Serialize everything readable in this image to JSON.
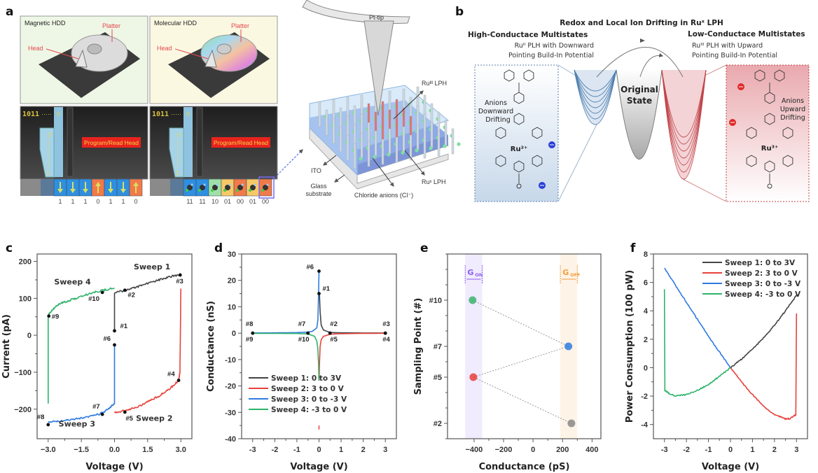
{
  "panel_letters": {
    "a": "a",
    "b": "b",
    "c": "c",
    "d": "d",
    "e": "e",
    "f": "f"
  },
  "panel_a": {
    "magnetic_title": "Magnetic HDD",
    "molecular_title": "Molecular HDD",
    "platter_label": "Platter",
    "head_label": "Head",
    "bit_stream": "1011",
    "dots": "·····",
    "zero": "0",
    "one": "1",
    "program_read_head": "Program/Read Head",
    "magnetic_bits": [
      "1",
      "1",
      "1",
      "0",
      "1",
      "1",
      "0"
    ],
    "molecular_bits": [
      "11",
      "11",
      "10",
      "01",
      "00",
      "01",
      "00"
    ],
    "magnetic_cell_colors": [
      "#2f8fe0",
      "#2f8fe0",
      "#2f8fe0",
      "#f07a4a",
      "#2f8fe0",
      "#2f8fe0",
      "#f07a4a"
    ],
    "molecular_cell_colors": [
      "#2f8fe0",
      "#2f8fe0",
      "#9ee0a8",
      "#f6c866",
      "#f07a4a",
      "#f6c866",
      "#f07a4a"
    ],
    "device": {
      "pt_tip": "Pt-tip",
      "ru3_lph": "Ruᴵᴵᴵ LPH",
      "ito": "ITO",
      "glass_line1": "Glass",
      "glass_line2": "substrate",
      "rux_lph": "Ruˣ LPH",
      "chloride": "Chloride anions (Cl⁻)"
    }
  },
  "panel_b": {
    "title": "Redox and Local Ion Drifting in Ruˣ LPH",
    "high_title": "High-Conductace Multistates",
    "high_sub1": "Ruᴵᴵ PLH with Downward",
    "high_sub2": "Pointing Build-In Potential",
    "low_title": "Low-Conductace Multistates",
    "low_sub1": "Ruᴵᴵᴵ PLH with Upward",
    "low_sub2": "Pointing Build-In Potential",
    "original1": "Original",
    "original2": "State",
    "down_anions": [
      "Anions",
      "Downward",
      "Drifting"
    ],
    "up_anions": [
      "Anions",
      "Upward",
      "Drifting"
    ],
    "ru2": "Ru²⁺",
    "ru3": "Ru³⁺",
    "high_color": "#4f7fb0",
    "low_color": "#c0454a"
  },
  "chart_data": [
    {
      "panel_label": "c",
      "type": "line",
      "xlabel": "Voltage (V)",
      "ylabel": "Current (pA)",
      "xlim": [
        -3.5,
        3.5
      ],
      "ylim": [
        -280,
        220
      ],
      "xticks": [
        -3,
        -1.5,
        0,
        1.5,
        3
      ],
      "xtick_labels": [
        "−3.0",
        "−1.5",
        "0.0",
        "1.5",
        "3.0"
      ],
      "yticks": [
        -200,
        -100,
        0,
        100,
        200
      ],
      "ytick_labels": [
        "−200",
        "−100",
        "0",
        "100",
        "200"
      ],
      "series": [
        {
          "name": "Sweep 1",
          "color": "#444444",
          "points": [
            [
              0,
              10
            ],
            [
              0,
              115
            ],
            [
              0.5,
              122
            ],
            [
              1,
              130
            ],
            [
              1.5,
              140
            ],
            [
              2,
              150
            ],
            [
              2.5,
              158
            ],
            [
              3,
              165
            ]
          ]
        },
        {
          "name": "Sweep 2",
          "color": "#e8413c",
          "points": [
            [
              3,
              125
            ],
            [
              2.96,
              -100
            ],
            [
              2.9,
              -122
            ],
            [
              2.5,
              -145
            ],
            [
              2,
              -165
            ],
            [
              1.5,
              -180
            ],
            [
              1,
              -195
            ],
            [
              0.5,
              -203
            ],
            [
              0,
              -210
            ]
          ]
        },
        {
          "name": "Sweep 3",
          "color": "#2f7be0",
          "points": [
            [
              0,
              -25
            ],
            [
              0,
              -185
            ],
            [
              -0.3,
              -200
            ],
            [
              -0.6,
              -212
            ],
            [
              -1,
              -218
            ],
            [
              -1.5,
              -224
            ],
            [
              -2,
              -228
            ],
            [
              -2.5,
              -232
            ],
            [
              -3,
              -235
            ]
          ]
        },
        {
          "name": "Sweep 4",
          "color": "#2fb36a",
          "points": [
            [
              -3,
              -185
            ],
            [
              -3,
              55
            ],
            [
              -2.8,
              70
            ],
            [
              -2.5,
              85
            ],
            [
              -2,
              95
            ],
            [
              -1.5,
              105
            ],
            [
              -1,
              115
            ],
            [
              -0.5,
              122
            ],
            [
              0,
              128
            ]
          ]
        }
      ],
      "markers": [
        {
          "label": "#1",
          "x": 0,
          "y": 12
        },
        {
          "label": "#2",
          "x": 0.47,
          "y": 122
        },
        {
          "label": "#3",
          "x": 2.97,
          "y": 163
        },
        {
          "label": "#4",
          "x": 2.9,
          "y": -122
        },
        {
          "label": "#5",
          "x": 0.47,
          "y": -208
        },
        {
          "label": "#6",
          "x": 0,
          "y": -26
        },
        {
          "label": "#7",
          "x": -0.55,
          "y": -214
        },
        {
          "label": "#8",
          "x": -3,
          "y": -242
        },
        {
          "label": "#9",
          "x": -2.97,
          "y": 52
        },
        {
          "label": "#10",
          "x": -0.55,
          "y": 116
        }
      ],
      "annotations": [
        "Sweep 1",
        "Sweep 2",
        "Sweep 3",
        "Sweep 4"
      ]
    },
    {
      "panel_label": "d",
      "type": "line",
      "xlabel": "Voltage (V)",
      "ylabel": "Conductance (nS)",
      "xlim": [
        -3.5,
        3.5
      ],
      "ylim": [
        -40,
        30
      ],
      "xticks": [
        -3,
        -2,
        -1,
        0,
        1,
        2,
        3
      ],
      "xtick_labels": [
        "-3",
        "-2",
        "-1",
        "0",
        "1",
        "2",
        "3"
      ],
      "yticks": [
        -40,
        -30,
        -20,
        -10,
        0,
        10,
        20,
        30
      ],
      "ytick_labels": [
        "-40",
        "-30",
        "-20",
        "-10",
        "0",
        "10",
        "20",
        "30"
      ],
      "legend_position": "bottom-left",
      "series": [
        {
          "name": "Sweep 1: 0 to 3V",
          "color": "#444444",
          "points": [
            [
              0.02,
              15
            ],
            [
              0.05,
              8
            ],
            [
              0.1,
              3
            ],
            [
              0.2,
              1.2
            ],
            [
              0.5,
              0.25
            ],
            [
              1,
              0.13
            ],
            [
              2,
              0.07
            ],
            [
              3,
              0.05
            ]
          ]
        },
        {
          "name": "Sweep 2: 3 to 0 V",
          "color": "#e8413c",
          "points": [
            [
              3,
              -0.04
            ],
            [
              2,
              -0.08
            ],
            [
              1,
              -0.2
            ],
            [
              0.5,
              -0.4
            ],
            [
              0.2,
              -1.2
            ],
            [
              0.1,
              -2.5
            ],
            [
              0.05,
              -5
            ],
            [
              0.02,
              -12
            ],
            [
              0.005,
              -18
            ]
          ]
        },
        {
          "name": "Sweep 3: 0 to -3 V",
          "color": "#2f7be0",
          "points": [
            [
              0,
              23.5
            ],
            [
              -0.02,
              15
            ],
            [
              -0.05,
              5
            ],
            [
              -0.1,
              2
            ],
            [
              -0.3,
              0.7
            ],
            [
              -0.5,
              0.4
            ],
            [
              -1,
              0.22
            ],
            [
              -2,
              0.11
            ],
            [
              -3,
              0.08
            ]
          ]
        },
        {
          "name": "Sweep 4: -3 to 0 V",
          "color": "#2fb36a",
          "points": [
            [
              -3,
              -0.06
            ],
            [
              -2,
              -0.1
            ],
            [
              -1,
              -0.12
            ],
            [
              -0.5,
              -0.3
            ],
            [
              -0.2,
              -1.2
            ],
            [
              -0.1,
              -3
            ],
            [
              -0.05,
              -6
            ],
            [
              -0.02,
              -12
            ],
            [
              -0.005,
              -18
            ]
          ]
        }
      ],
      "outlier": {
        "x": 0,
        "y": [
          -35,
          -36.5
        ],
        "color": "#e8413c"
      },
      "markers": [
        {
          "label": "#6",
          "x": 0,
          "y": 23.5
        },
        {
          "label": "#1",
          "x": 0,
          "y": 15
        },
        {
          "label": "#8",
          "x": -3,
          "y": 0
        },
        {
          "label": "#9",
          "x": -3,
          "y": 0
        },
        {
          "label": "#7",
          "x": -0.5,
          "y": 0
        },
        {
          "label": "#10",
          "x": -0.5,
          "y": 0
        },
        {
          "label": "#2",
          "x": 0.5,
          "y": 0
        },
        {
          "label": "#5",
          "x": 0.5,
          "y": 0
        },
        {
          "label": "#3",
          "x": 3,
          "y": 0
        },
        {
          "label": "#4",
          "x": 3,
          "y": 0
        }
      ]
    },
    {
      "panel_label": "e",
      "type": "scatter",
      "xlabel": "Conductance (pS)",
      "ylabel": "Sampling Point (#)",
      "xlim": [
        -580,
        460
      ],
      "ylim": [
        1,
        13
      ],
      "xticks": [
        -400,
        -200,
        0,
        200,
        400
      ],
      "xtick_labels": [
        "−400",
        "−200",
        "0",
        "200",
        "400"
      ],
      "yticks": [
        2,
        5,
        7,
        10
      ],
      "ytick_labels": [
        "#2",
        "#5",
        "#7",
        "#10"
      ],
      "bands": [
        {
          "label": "G",
          "sub": "ON",
          "range": [
            -460,
            -345
          ],
          "color": "#8b5cf6"
        },
        {
          "label": "G",
          "sub": "OFF",
          "range": [
            185,
            300
          ],
          "color": "#f39c3a"
        }
      ],
      "points": [
        {
          "label": "#10",
          "x": -410,
          "y": 10,
          "color": "#3cb371"
        },
        {
          "label": "#7",
          "x": 240,
          "y": 7,
          "color": "#2f7be0"
        },
        {
          "label": "#5",
          "x": -405,
          "y": 5,
          "color": "#e8413c"
        },
        {
          "label": "#2",
          "x": 260,
          "y": 2,
          "color": "#888888"
        }
      ]
    },
    {
      "panel_label": "f",
      "type": "line",
      "xlabel": "Voltage (V)",
      "ylabel": "Power Consumption (100 pW)",
      "xlim": [
        -3.5,
        3.5
      ],
      "ylim": [
        -5,
        8
      ],
      "xticks": [
        -3,
        -2,
        -1,
        0,
        1,
        2,
        3
      ],
      "xtick_labels": [
        "-3",
        "-2",
        "-1",
        "0",
        "1",
        "2",
        "3"
      ],
      "yticks": [
        -4,
        -2,
        0,
        2,
        4,
        6,
        8
      ],
      "ytick_labels": [
        "-4",
        "-2",
        "0",
        "2",
        "4",
        "6",
        "8"
      ],
      "legend_position": "top-right",
      "series": [
        {
          "name": "Sweep 1: 0 to 3V",
          "color": "#444444",
          "points": [
            [
              0,
              0
            ],
            [
              0.5,
              0.6
            ],
            [
              1,
              1.3
            ],
            [
              1.5,
              2.1
            ],
            [
              2,
              3
            ],
            [
              2.5,
              4
            ],
            [
              3,
              5.1
            ]
          ]
        },
        {
          "name": "Sweep 2: 3 to 0 V",
          "color": "#e8413c",
          "points": [
            [
              3,
              3.8
            ],
            [
              2.97,
              -3.3
            ],
            [
              2.7,
              -3.6
            ],
            [
              2.5,
              -3.6
            ],
            [
              2,
              -3.3
            ],
            [
              1.5,
              -2.7
            ],
            [
              1,
              -1.9
            ],
            [
              0.5,
              -1
            ],
            [
              0,
              0
            ]
          ]
        },
        {
          "name": "Sweep 3: 0 to -3 V",
          "color": "#2f7be0",
          "points": [
            [
              0,
              0
            ],
            [
              -0.5,
              1.1
            ],
            [
              -1,
              2.2
            ],
            [
              -1.5,
              3.4
            ],
            [
              -2,
              4.6
            ],
            [
              -2.5,
              5.8
            ],
            [
              -3,
              7
            ]
          ]
        },
        {
          "name": "Sweep 4: -3 to 0 V",
          "color": "#2fb36a",
          "points": [
            [
              -3,
              5.5
            ],
            [
              -2.98,
              -1.6
            ],
            [
              -2.8,
              -1.8
            ],
            [
              -2.5,
              -2
            ],
            [
              -2,
              -1.9
            ],
            [
              -1.5,
              -1.6
            ],
            [
              -1,
              -1.2
            ],
            [
              -0.5,
              -0.6
            ],
            [
              0,
              0
            ]
          ]
        }
      ]
    }
  ]
}
